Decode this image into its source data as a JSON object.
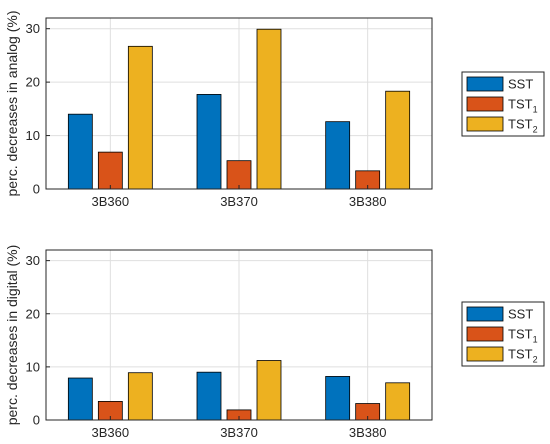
{
  "colors": {
    "SST": "#0072BD",
    "TST1": "#D95319",
    "TST2": "#EDB120",
    "axis": "#262626",
    "grid": "#dfdfdf"
  },
  "chart_data": [
    {
      "type": "bar",
      "ylabel": "perc. decreases in analog (%)",
      "categories": [
        "3B360",
        "3B370",
        "3B380"
      ],
      "ylim": [
        0,
        32
      ],
      "yticks": [
        0,
        10,
        20,
        30
      ],
      "grid": true,
      "legend_position": "outside-right",
      "series": [
        {
          "name": "SST",
          "values": [
            14.0,
            17.7,
            12.6
          ]
        },
        {
          "name": "TST1",
          "values": [
            6.9,
            5.3,
            3.4
          ]
        },
        {
          "name": "TST2",
          "values": [
            26.7,
            29.9,
            18.3
          ]
        }
      ],
      "legend": [
        {
          "key": "SST",
          "base": "SST",
          "sub": ""
        },
        {
          "key": "TST1",
          "base": "TST",
          "sub": "1"
        },
        {
          "key": "TST2",
          "base": "TST",
          "sub": "2"
        }
      ]
    },
    {
      "type": "bar",
      "ylabel": "perc. decreases in digital (%)",
      "categories": [
        "3B360",
        "3B370",
        "3B380"
      ],
      "ylim": [
        0,
        32
      ],
      "yticks": [
        0,
        10,
        20,
        30
      ],
      "grid": true,
      "legend_position": "outside-right",
      "series": [
        {
          "name": "SST",
          "values": [
            7.9,
            9.0,
            8.2
          ]
        },
        {
          "name": "TST1",
          "values": [
            3.5,
            1.9,
            3.1
          ]
        },
        {
          "name": "TST2",
          "values": [
            8.9,
            11.2,
            7.0
          ]
        }
      ],
      "legend": [
        {
          "key": "SST",
          "base": "SST",
          "sub": ""
        },
        {
          "key": "TST1",
          "base": "TST",
          "sub": "1"
        },
        {
          "key": "TST2",
          "base": "TST",
          "sub": "2"
        }
      ]
    }
  ]
}
